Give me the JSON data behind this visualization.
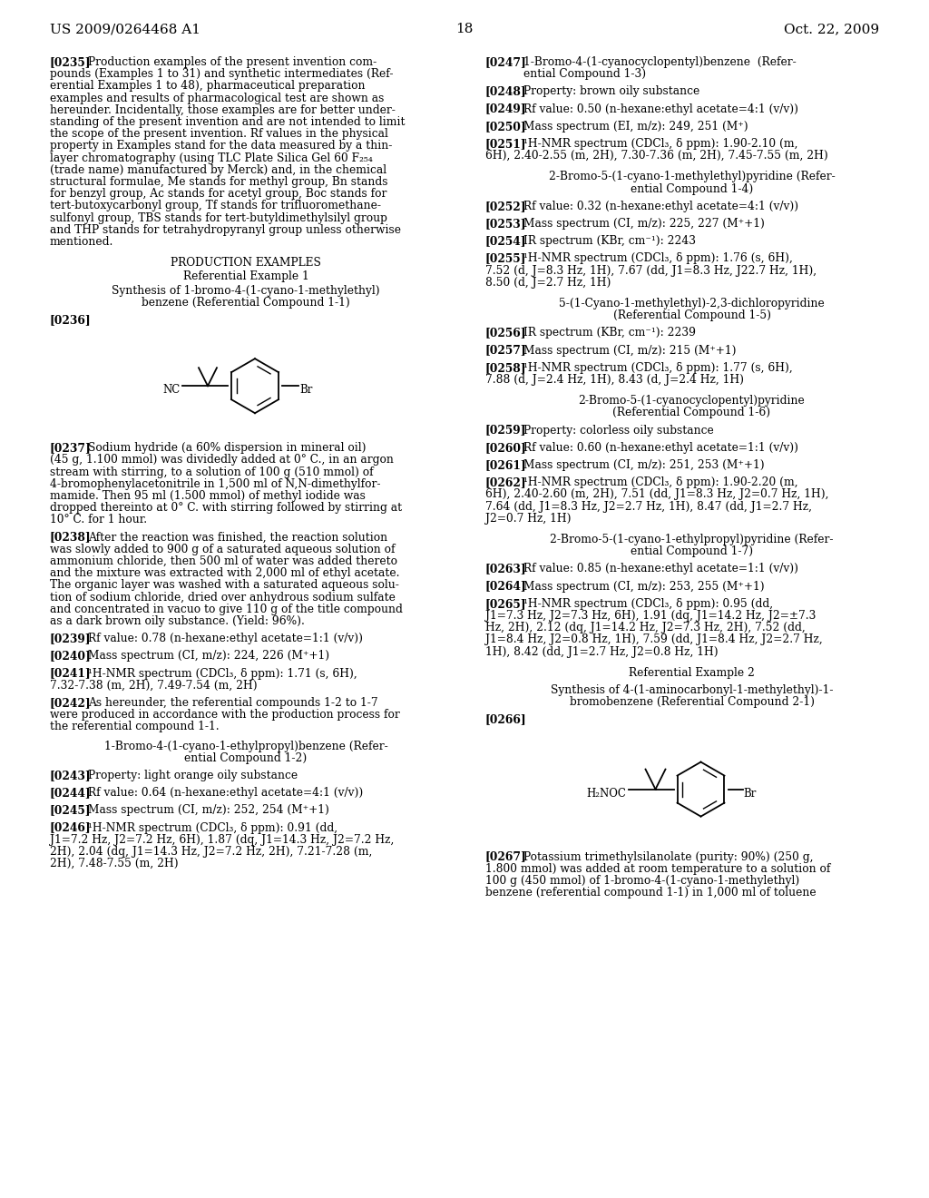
{
  "page_number": "18",
  "patent_number": "US 2009/0264468 A1",
  "patent_date": "Oct. 22, 2009",
  "background_color": "#ffffff"
}
